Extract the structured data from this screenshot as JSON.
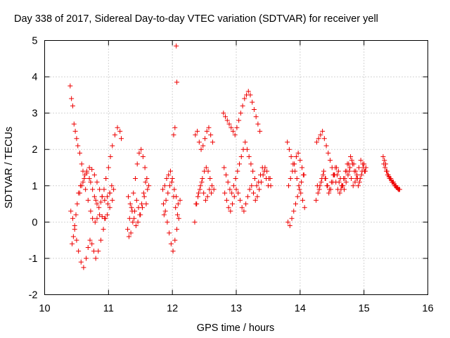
{
  "chart_data": {
    "type": "scatter",
    "title": "Day 338 of 2017, Sidereal Day-to-day VTEC variation (SDTVAR) for receiver yell",
    "xlabel": "GPS time / hours",
    "ylabel": "SDTVAR / TECUs",
    "xlim": [
      10,
      16
    ],
    "ylim": [
      -2,
      5
    ],
    "xticks": [
      "10",
      "11",
      "12",
      "13",
      "14",
      "15",
      "16"
    ],
    "yticks": [
      "-2",
      "-1",
      "0",
      "1",
      "2",
      "3",
      "4",
      "5"
    ],
    "grid": true,
    "marker": "plus",
    "color": "#ee0000",
    "series": [
      {
        "name": "SDTVAR",
        "x": [
          10.4,
          10.42,
          10.44,
          10.46,
          10.48,
          10.5,
          10.52,
          10.55,
          10.58,
          10.6,
          10.63,
          10.66,
          10.7,
          10.72,
          10.75,
          10.78,
          10.8,
          10.82,
          10.85,
          10.88,
          10.9,
          10.93,
          10.96,
          11.0,
          11.03,
          11.06,
          11.1,
          11.14,
          11.18,
          11.2,
          10.43,
          10.45,
          10.47,
          10.49,
          10.51,
          10.53,
          10.56,
          10.6,
          10.64,
          10.68,
          10.72,
          10.75,
          10.79,
          10.82,
          10.86,
          10.9,
          10.94,
          10.98,
          11.02,
          11.06,
          10.41,
          10.44,
          10.47,
          10.5,
          10.53,
          10.57,
          10.61,
          10.65,
          10.68,
          10.71,
          10.74,
          10.77,
          10.8,
          10.84,
          10.88,
          10.92,
          10.95,
          10.99,
          11.02,
          11.05,
          11.08,
          10.55,
          10.58,
          10.62,
          10.66,
          10.7,
          10.74,
          10.78,
          10.82,
          10.86,
          10.9,
          10.94,
          10.98,
          11.02,
          11.3,
          11.33,
          11.36,
          11.39,
          11.42,
          11.45,
          11.48,
          11.51,
          11.54,
          11.57,
          11.6,
          11.63,
          11.31,
          11.34,
          11.37,
          11.4,
          11.43,
          11.46,
          11.49,
          11.52,
          11.55,
          11.58,
          11.61,
          11.32,
          11.35,
          11.38,
          11.41,
          11.44,
          11.47,
          11.5,
          11.53,
          11.56,
          11.59,
          11.85,
          11.88,
          11.91,
          11.94,
          11.97,
          12.0,
          12.03,
          12.06,
          12.09,
          12.12,
          11.86,
          11.89,
          11.92,
          11.95,
          11.98,
          12.01,
          12.04,
          12.07,
          12.1,
          11.87,
          11.9,
          11.93,
          11.96,
          11.99,
          12.02,
          12.05,
          12.08,
          12.06,
          12.07,
          12.04,
          12.02,
          12.35,
          12.38,
          12.41,
          12.44,
          12.47,
          12.5,
          12.53,
          12.56,
          12.59,
          12.62,
          12.65,
          12.36,
          12.39,
          12.42,
          12.45,
          12.48,
          12.51,
          12.54,
          12.57,
          12.6,
          12.63,
          12.37,
          12.4,
          12.43,
          12.46,
          12.49,
          12.52,
          12.55,
          12.58,
          12.61,
          12.8,
          12.83,
          12.86,
          12.89,
          12.92,
          12.95,
          12.98,
          13.01,
          13.04,
          13.07,
          13.1,
          13.13,
          13.16,
          13.19,
          13.22,
          13.25,
          13.28,
          13.31,
          13.34,
          13.37,
          12.81,
          12.84,
          12.87,
          12.9,
          12.93,
          12.96,
          12.99,
          13.02,
          13.05,
          13.08,
          13.11,
          13.14,
          13.17,
          13.2,
          13.23,
          13.26,
          13.29,
          13.32,
          13.35,
          13.38,
          13.41,
          13.44,
          13.47,
          13.5,
          13.53,
          12.82,
          12.85,
          12.88,
          12.91,
          12.94,
          12.97,
          13.0,
          13.03,
          13.06,
          13.09,
          13.12,
          13.15,
          13.18,
          13.21,
          13.24,
          13.27,
          13.3,
          13.33,
          13.36,
          13.39,
          13.42,
          13.45,
          13.48,
          13.51,
          13.54,
          13.8,
          13.83,
          13.86,
          13.89,
          13.92,
          13.95,
          13.98,
          14.01,
          14.04,
          14.07,
          13.81,
          13.84,
          13.87,
          13.9,
          13.93,
          13.96,
          13.99,
          14.02,
          14.05,
          13.82,
          13.85,
          13.88,
          13.91,
          13.94,
          13.97,
          14.0,
          14.03,
          14.06,
          14.25,
          14.28,
          14.31,
          14.34,
          14.37,
          14.4,
          14.43,
          14.46,
          14.49,
          14.52,
          14.55,
          14.58,
          14.61,
          14.64,
          14.67,
          14.7,
          14.73,
          14.76,
          14.79,
          14.82,
          14.85,
          14.88,
          14.91,
          14.94,
          14.97,
          15.0,
          15.03,
          14.26,
          14.29,
          14.32,
          14.35,
          14.38,
          14.41,
          14.44,
          14.47,
          14.5,
          14.53,
          14.56,
          14.59,
          14.62,
          14.65,
          14.68,
          14.71,
          14.74,
          14.77,
          14.8,
          14.83,
          14.86,
          14.89,
          14.92,
          14.95,
          14.98,
          15.01,
          14.27,
          14.3,
          14.33,
          14.36,
          14.39,
          14.42,
          14.45,
          14.48,
          14.51,
          14.54,
          14.57,
          14.6,
          14.63,
          14.66,
          14.69,
          14.72,
          14.75,
          14.78,
          14.81,
          14.84,
          14.87,
          14.9,
          14.93,
          14.96,
          14.99,
          15.02,
          15.3,
          15.32,
          15.34,
          15.36,
          15.38,
          15.4,
          15.42,
          15.44,
          15.46,
          15.48,
          15.5,
          15.52,
          15.54,
          15.56,
          15.31,
          15.33,
          15.35,
          15.37,
          15.39,
          15.41,
          15.43,
          15.45,
          15.47,
          15.49,
          15.51,
          15.53,
          15.55
        ],
        "y": [
          3.75,
          3.4,
          3.2,
          2.7,
          2.5,
          2.3,
          2.1,
          1.9,
          1.6,
          1.4,
          1.3,
          1.35,
          1.2,
          1.1,
          0.9,
          0.7,
          0.6,
          0.5,
          0.4,
          0.55,
          0.7,
          0.9,
          1.2,
          1.5,
          1.8,
          2.1,
          2.4,
          2.6,
          2.5,
          2.3,
          -0.6,
          -0.4,
          -0.1,
          0.2,
          0.5,
          0.8,
          1.0,
          1.1,
          0.9,
          0.6,
          0.3,
          0.1,
          0.0,
          0.1,
          0.2,
          0.15,
          0.1,
          0.2,
          0.4,
          0.6,
          0.3,
          0.1,
          -0.2,
          -0.5,
          -0.8,
          -1.1,
          -1.25,
          -1.0,
          -0.7,
          -0.5,
          -0.6,
          -0.8,
          -1.0,
          -0.8,
          -0.5,
          -0.2,
          0.1,
          0.5,
          0.8,
          1.0,
          0.9,
          0.8,
          1.0,
          1.2,
          1.4,
          1.5,
          1.45,
          1.3,
          1.1,
          0.9,
          0.7,
          0.6,
          0.7,
          0.8,
          -0.2,
          0.1,
          0.4,
          0.8,
          1.2,
          1.6,
          1.9,
          2.0,
          1.8,
          1.5,
          1.2,
          1.0,
          0.7,
          0.5,
          0.3,
          0.1,
          -0.1,
          0.0,
          0.2,
          0.5,
          0.8,
          1.1,
          0.9,
          -0.4,
          -0.3,
          0.0,
          0.3,
          0.6,
          0.4,
          0.2,
          0.4,
          0.7,
          0.5,
          0.9,
          1.0,
          1.2,
          1.3,
          1.4,
          1.2,
          0.9,
          0.7,
          0.5,
          0.6,
          0.5,
          0.3,
          0.0,
          -0.3,
          -0.6,
          -0.8,
          -0.5,
          -0.2,
          0.1,
          0.2,
          0.6,
          0.8,
          1.0,
          1.1,
          0.7,
          0.4,
          0.2,
          4.85,
          3.85,
          2.6,
          2.4,
          0.0,
          0.5,
          0.8,
          1.0,
          1.2,
          1.4,
          1.5,
          1.4,
          1.2,
          1.0,
          0.9,
          2.4,
          2.5,
          2.2,
          2.0,
          2.1,
          2.3,
          2.5,
          2.6,
          2.4,
          2.2,
          0.5,
          0.7,
          0.9,
          1.1,
          0.8,
          0.6,
          0.7,
          0.9,
          0.8,
          3.0,
          2.9,
          2.8,
          2.7,
          2.6,
          2.5,
          2.4,
          2.6,
          2.8,
          3.0,
          3.2,
          3.4,
          3.5,
          3.6,
          3.5,
          3.3,
          3.1,
          2.9,
          2.7,
          2.5,
          1.5,
          1.3,
          1.1,
          0.9,
          0.8,
          1.0,
          1.2,
          1.4,
          1.6,
          1.8,
          2.0,
          2.2,
          2.0,
          1.8,
          1.6,
          1.4,
          1.2,
          1.0,
          1.1,
          1.3,
          1.5,
          1.4,
          1.2,
          1.0,
          1.2,
          0.8,
          0.6,
          0.4,
          0.3,
          0.5,
          0.7,
          0.9,
          0.8,
          0.6,
          0.4,
          0.3,
          0.5,
          0.7,
          0.9,
          1.0,
          0.8,
          0.6,
          0.7,
          0.9,
          1.1,
          1.3,
          1.5,
          1.4,
          1.2,
          1.0,
          2.2,
          2.0,
          1.8,
          1.6,
          1.4,
          1.2,
          1.0,
          0.8,
          0.6,
          0.4,
          0.0,
          -0.1,
          0.1,
          0.3,
          0.5,
          0.7,
          0.9,
          1.1,
          1.3,
          1.0,
          1.2,
          1.4,
          1.6,
          1.8,
          1.9,
          1.7,
          1.5,
          1.3,
          0.6,
          0.8,
          1.0,
          1.2,
          1.4,
          1.2,
          1.0,
          0.9,
          1.1,
          1.3,
          1.5,
          1.3,
          1.1,
          0.9,
          1.0,
          1.2,
          1.4,
          1.6,
          1.8,
          1.6,
          1.4,
          1.2,
          1.0,
          1.2,
          1.4,
          1.6,
          1.5,
          2.2,
          2.3,
          2.4,
          2.5,
          2.3,
          2.1,
          1.9,
          1.7,
          1.5,
          1.3,
          1.1,
          0.9,
          0.8,
          1.0,
          1.2,
          1.4,
          1.6,
          1.4,
          1.2,
          1.0,
          1.1,
          1.3,
          1.5,
          1.7,
          1.6,
          1.4,
          1.0,
          0.9,
          1.1,
          1.3,
          1.2,
          1.0,
          0.8,
          0.9,
          1.1,
          1.3,
          1.5,
          1.4,
          1.2,
          1.0,
          0.9,
          1.1,
          1.3,
          1.5,
          1.7,
          1.6,
          1.4,
          1.2,
          1.1,
          1.3,
          1.5,
          1.4,
          1.8,
          1.7,
          1.6,
          1.4,
          1.3,
          1.2,
          1.2,
          1.1,
          1.1,
          1.0,
          1.0,
          0.95,
          0.9,
          0.9,
          1.6,
          1.5,
          1.4,
          1.3,
          1.25,
          1.2,
          1.15,
          1.1,
          1.05,
          1.0,
          0.95,
          0.92,
          0.9
        ]
      }
    ]
  }
}
